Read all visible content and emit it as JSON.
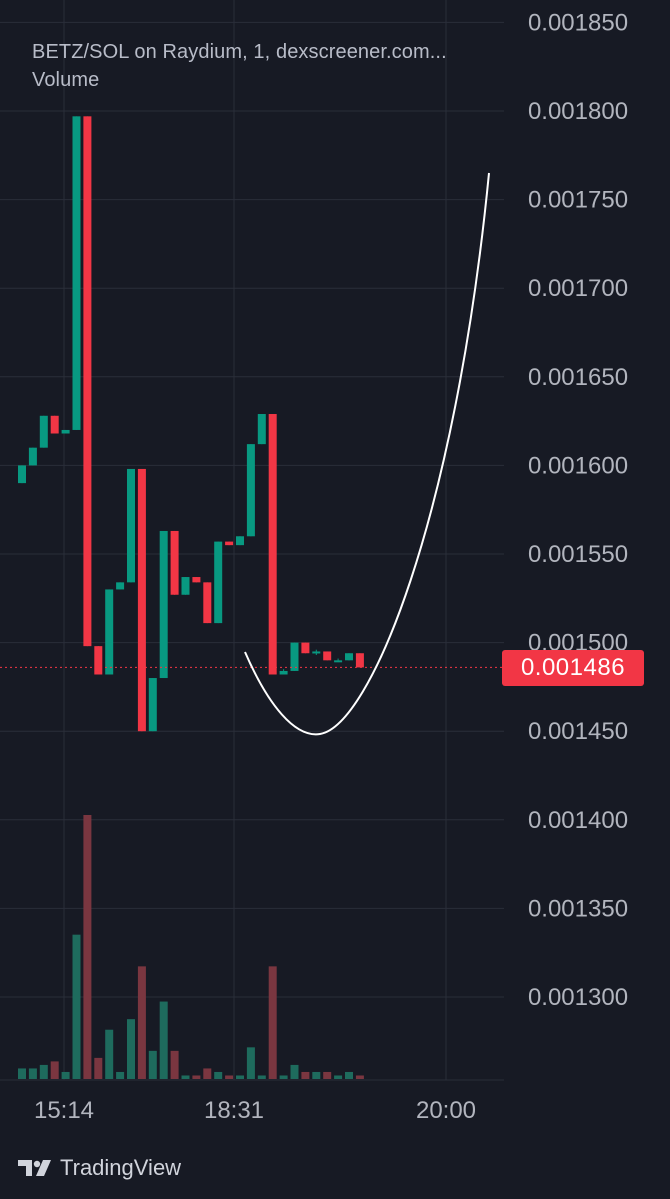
{
  "legend": {
    "title": "BETZ/SOL on Raydium, 1, dexscreener.com...",
    "volume_label": "Volume"
  },
  "footer": {
    "brand": "TradingView",
    "logo_icon": "tradingview-logo-icon"
  },
  "last_price_label": "0.001486",
  "colors": {
    "background": "#171a24",
    "up": "#089981",
    "down": "#f23645",
    "up_volume": "#1e6b5d",
    "down_volume": "#7a3640",
    "grid": "#2a2e39",
    "axis_text": "#b2b5be",
    "price_tag": "#f23645",
    "drawing": "#ffffff"
  },
  "chart_data": {
    "type": "candlestick",
    "y_axis_ticks": [
      "0.001850",
      "0.001800",
      "0.001750",
      "0.001700",
      "0.001650",
      "0.001600",
      "0.001550",
      "0.001500",
      "0.001450",
      "0.001400",
      "0.001350",
      "0.001300"
    ],
    "ylim": [
      0.00126,
      0.00186
    ],
    "x_axis_ticks": [
      "15:14",
      "18:31",
      "20:00"
    ],
    "last_price": 0.001486,
    "grid": true,
    "candles": [
      {
        "open": 0.00159,
        "high": 0.0016,
        "low": 0.00159,
        "close": 0.0016
      },
      {
        "open": 0.0016,
        "high": 0.00161,
        "low": 0.0016,
        "close": 0.00161
      },
      {
        "open": 0.00161,
        "high": 0.001628,
        "low": 0.00161,
        "close": 0.001628
      },
      {
        "open": 0.001628,
        "high": 0.001628,
        "low": 0.001618,
        "close": 0.001618
      },
      {
        "open": 0.001618,
        "high": 0.00162,
        "low": 0.001618,
        "close": 0.00162
      },
      {
        "open": 0.00162,
        "high": 0.001797,
        "low": 0.00162,
        "close": 0.001797
      },
      {
        "open": 0.001797,
        "high": 0.001797,
        "low": 0.001498,
        "close": 0.001498
      },
      {
        "open": 0.001498,
        "high": 0.001498,
        "low": 0.001482,
        "close": 0.001482
      },
      {
        "open": 0.001482,
        "high": 0.00153,
        "low": 0.001482,
        "close": 0.00153
      },
      {
        "open": 0.00153,
        "high": 0.001534,
        "low": 0.00153,
        "close": 0.001534
      },
      {
        "open": 0.001534,
        "high": 0.001598,
        "low": 0.001534,
        "close": 0.001598
      },
      {
        "open": 0.001598,
        "high": 0.001598,
        "low": 0.00145,
        "close": 0.00145
      },
      {
        "open": 0.00145,
        "high": 0.00148,
        "low": 0.00145,
        "close": 0.00148
      },
      {
        "open": 0.00148,
        "high": 0.001563,
        "low": 0.00148,
        "close": 0.001563
      },
      {
        "open": 0.001563,
        "high": 0.001563,
        "low": 0.001527,
        "close": 0.001527
      },
      {
        "open": 0.001527,
        "high": 0.001537,
        "low": 0.001527,
        "close": 0.001537
      },
      {
        "open": 0.001537,
        "high": 0.001537,
        "low": 0.001534,
        "close": 0.001534
      },
      {
        "open": 0.001534,
        "high": 0.001534,
        "low": 0.001511,
        "close": 0.001511
      },
      {
        "open": 0.001511,
        "high": 0.001557,
        "low": 0.001511,
        "close": 0.001557
      },
      {
        "open": 0.001557,
        "high": 0.001557,
        "low": 0.001555,
        "close": 0.001555
      },
      {
        "open": 0.001555,
        "high": 0.00156,
        "low": 0.001555,
        "close": 0.00156
      },
      {
        "open": 0.00156,
        "high": 0.001612,
        "low": 0.00156,
        "close": 0.001612
      },
      {
        "open": 0.001612,
        "high": 0.001629,
        "low": 0.001612,
        "close": 0.001629
      },
      {
        "open": 0.001629,
        "high": 0.001629,
        "low": 0.001482,
        "close": 0.001482
      },
      {
        "open": 0.001482,
        "high": 0.001485,
        "low": 0.001482,
        "close": 0.001484
      },
      {
        "open": 0.001484,
        "high": 0.0015,
        "low": 0.001484,
        "close": 0.0015
      },
      {
        "open": 0.0015,
        "high": 0.0015,
        "low": 0.001494,
        "close": 0.001494
      },
      {
        "open": 0.001494,
        "high": 0.001496,
        "low": 0.001493,
        "close": 0.001495
      },
      {
        "open": 0.001495,
        "high": 0.001495,
        "low": 0.00149,
        "close": 0.00149
      },
      {
        "open": 0.00149,
        "high": 0.001491,
        "low": 0.001489,
        "close": 0.00149
      },
      {
        "open": 0.00149,
        "high": 0.001494,
        "low": 0.00149,
        "close": 0.001494
      },
      {
        "open": 0.001494,
        "high": 0.001494,
        "low": 0.001486,
        "close": 0.001486
      }
    ],
    "volume": [
      3,
      3,
      4,
      5,
      2,
      41,
      75,
      6,
      14,
      2,
      17,
      32,
      8,
      22,
      8,
      1,
      1,
      3,
      2,
      1,
      1,
      9,
      1,
      32,
      1,
      4,
      2,
      2,
      2,
      1,
      2,
      1
    ],
    "volume_max": 75
  }
}
